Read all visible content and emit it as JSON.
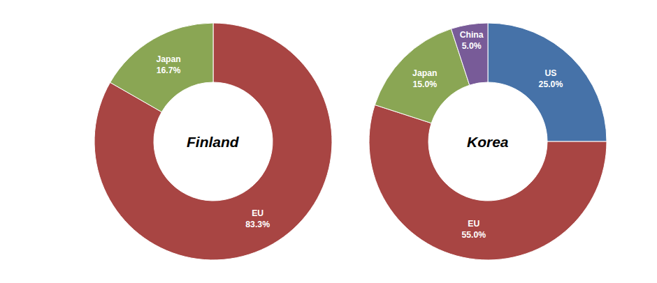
{
  "chart_data": [
    {
      "type": "pie",
      "title": "Finland",
      "categories": [
        "EU",
        "Japan"
      ],
      "values": [
        83.3,
        16.7
      ],
      "value_labels": [
        "83.3%",
        "16.7%"
      ],
      "colors": [
        "#a84543",
        "#8aa654"
      ],
      "data_labels": true
    },
    {
      "type": "pie",
      "title": "Korea",
      "categories": [
        "US",
        "EU",
        "Japan",
        "China"
      ],
      "values": [
        25.0,
        55.0,
        15.0,
        5.0
      ],
      "value_labels": [
        "25.0%",
        "55.0%",
        "15.0%",
        "5.0%"
      ],
      "colors": [
        "#4672a8",
        "#a84543",
        "#8aa654",
        "#785b98"
      ],
      "data_labels": true
    }
  ]
}
